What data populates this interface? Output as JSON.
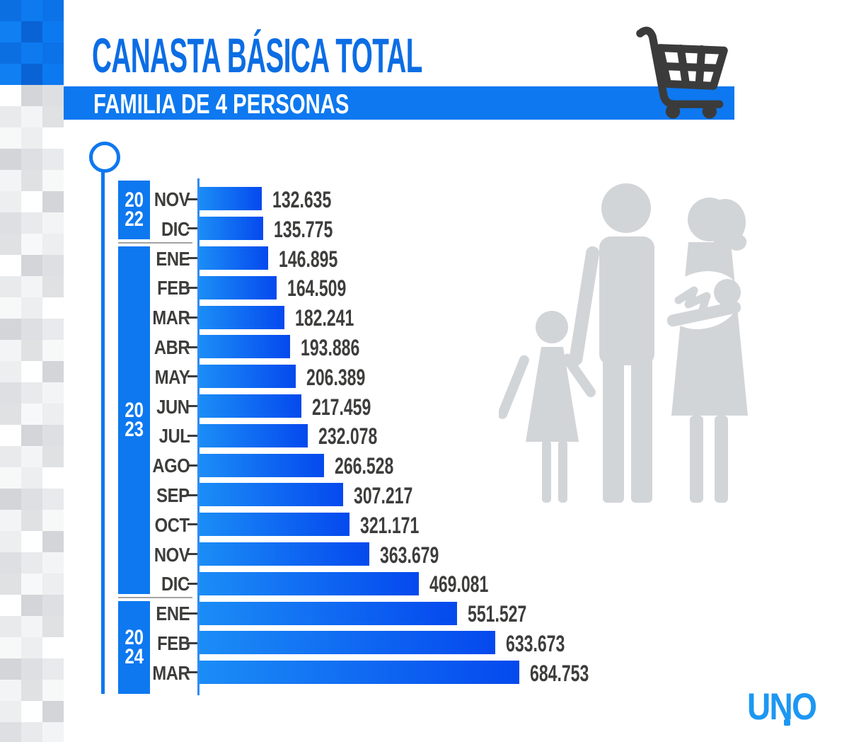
{
  "header": {
    "title": "CANASTA BÁSICA TOTAL",
    "subtitle": "FAMILIA DE 4 PERSONAS"
  },
  "logo": {
    "text": "UNO"
  },
  "icons": {
    "cart": "shopping-cart-icon",
    "family": "family-of-four-silhouette",
    "timeline_marker": "timeline-circle-marker"
  },
  "colors": {
    "accent": "#0d78f0",
    "title_blue": "#0c6de4",
    "bar_gradient_start": "#1b8df6",
    "bar_gradient_end": "#0549ee",
    "ink": "#3d3d3c",
    "silhouette_gray": "#d2d5d8",
    "logo_blue": "#1d97f2"
  },
  "chart_data": {
    "type": "bar",
    "orientation": "horizontal",
    "title": "CANASTA BÁSICA TOTAL — FAMILIA DE 4 PERSONAS",
    "value_axis_max": 684753,
    "grid": false,
    "legend": false,
    "rows": [
      {
        "year": "2022",
        "month": "NOV",
        "value": 132635,
        "label": "132.635"
      },
      {
        "year": "2022",
        "month": "DIC",
        "value": 135775,
        "label": "135.775"
      },
      {
        "year": "2023",
        "month": "ENE",
        "value": 146895,
        "label": "146.895"
      },
      {
        "year": "2023",
        "month": "FEB",
        "value": 164509,
        "label": "164.509"
      },
      {
        "year": "2023",
        "month": "MAR",
        "value": 182241,
        "label": "182.241"
      },
      {
        "year": "2023",
        "month": "ABR",
        "value": 193886,
        "label": "193.886"
      },
      {
        "year": "2023",
        "month": "MAY",
        "value": 206389,
        "label": "206.389"
      },
      {
        "year": "2023",
        "month": "JUN",
        "value": 217459,
        "label": "217.459"
      },
      {
        "year": "2023",
        "month": "JUL",
        "value": 232078,
        "label": "232.078"
      },
      {
        "year": "2023",
        "month": "AGO",
        "value": 266528,
        "label": "266.528"
      },
      {
        "year": "2023",
        "month": "SEP",
        "value": 307217,
        "label": "307.217"
      },
      {
        "year": "2023",
        "month": "OCT",
        "value": 321171,
        "label": "321.171"
      },
      {
        "year": "2023",
        "month": "NOV",
        "value": 363679,
        "label": "363.679"
      },
      {
        "year": "2023",
        "month": "DIC",
        "value": 469081,
        "label": "469.081"
      },
      {
        "year": "2024",
        "month": "ENE",
        "value": 551527,
        "label": "551.527"
      },
      {
        "year": "2024",
        "month": "FEB",
        "value": 633673,
        "label": "633.673"
      },
      {
        "year": "2024",
        "month": "MAR",
        "value": 684753,
        "label": "684.753"
      }
    ]
  }
}
